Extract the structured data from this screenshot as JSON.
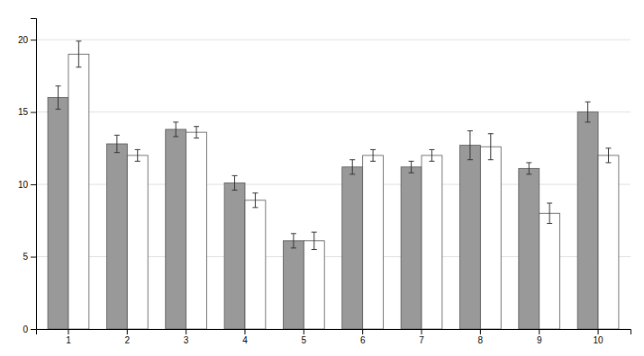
{
  "chart_data": {
    "type": "bar",
    "categories": [
      1,
      2,
      3,
      4,
      5,
      6,
      7,
      8,
      9,
      10
    ],
    "series": [
      {
        "color": "#999999",
        "values": [
          16.0,
          12.8,
          13.8,
          10.1,
          6.1,
          11.2,
          11.2,
          12.7,
          11.1,
          15.0
        ],
        "errors": [
          0.8,
          0.6,
          0.5,
          0.5,
          0.5,
          0.5,
          0.4,
          1.0,
          0.4,
          0.7
        ]
      },
      {
        "color": "#ffffff",
        "values": [
          19.0,
          12.0,
          13.6,
          8.9,
          6.1,
          12.0,
          12.0,
          12.6,
          8.0,
          12.0
        ],
        "errors": [
          0.9,
          0.4,
          0.4,
          0.5,
          0.6,
          0.4,
          0.4,
          0.9,
          0.7,
          0.5
        ]
      }
    ],
    "ylim": [
      0,
      21.5
    ],
    "yticks": [
      0,
      5,
      10,
      15,
      20
    ],
    "grid": true
  }
}
